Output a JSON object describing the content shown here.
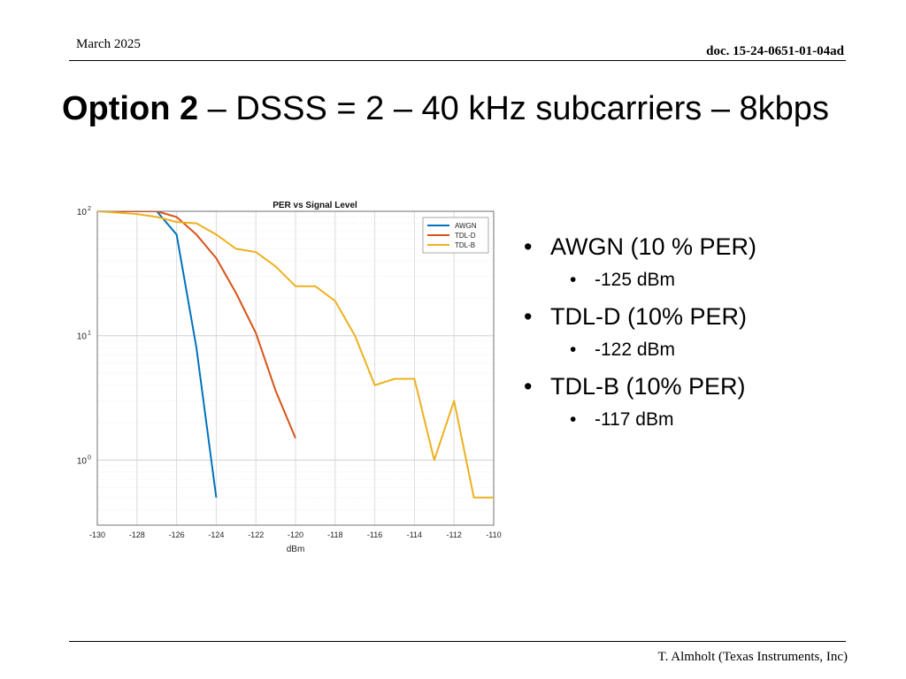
{
  "header": {
    "date": "March 2025",
    "doc_id": "doc. 15-24-0651-01-04ad"
  },
  "title": {
    "bold": "Option 2",
    "rest": " – DSSS = 2 – 40 kHz subcarriers – 8kbps"
  },
  "bullets": [
    {
      "text": "AWGN (10 % PER)",
      "sub": "-125 dBm"
    },
    {
      "text": "TDL-D (10% PER)",
      "sub": "-122 dBm"
    },
    {
      "text": "TDL-B (10% PER)",
      "sub": "-117 dBm"
    }
  ],
  "footer": {
    "author": "T. Almholt (Texas Instruments, Inc)"
  },
  "chart_data": {
    "type": "line",
    "title": "PER vs Signal Level",
    "xlabel": "dBm",
    "ylabel": "",
    "xlim": [
      -130,
      -110
    ],
    "ylim": [
      0.3,
      100
    ],
    "yscale": "log",
    "x_ticks": [
      -130,
      -128,
      -126,
      -124,
      -122,
      -120,
      -118,
      -116,
      -114,
      -112,
      -110
    ],
    "y_ticks": [
      {
        "value": 1,
        "label": "10",
        "exp": "0"
      },
      {
        "value": 10,
        "label": "10",
        "exp": "1"
      },
      {
        "value": 100,
        "label": "10",
        "exp": "2"
      }
    ],
    "grid": true,
    "legend": "top-right",
    "series": [
      {
        "name": "AWGN",
        "color": "#0072BD",
        "x": [
          -130,
          -127,
          -126,
          -125,
          -124
        ],
        "y": [
          100,
          100,
          65,
          8,
          0.5
        ]
      },
      {
        "name": "TDL-D",
        "color": "#D95319",
        "x": [
          -130,
          -127,
          -126,
          -125,
          -124,
          -123,
          -122,
          -121,
          -120
        ],
        "y": [
          100,
          100,
          90,
          65,
          42,
          22,
          10.5,
          3.6,
          1.5
        ]
      },
      {
        "name": "TDL-B",
        "color": "#EDB120",
        "x": [
          -130,
          -128,
          -127,
          -126,
          -125,
          -124,
          -123,
          -122,
          -121,
          -120,
          -119,
          -118,
          -117,
          -116,
          -115,
          -114,
          -113,
          -112,
          -111,
          -110
        ],
        "y": [
          100,
          95,
          90,
          82,
          80,
          65,
          50,
          47,
          36,
          25,
          25,
          19,
          10,
          4,
          4.5,
          4.5,
          1,
          3,
          0.5,
          0.5
        ]
      }
    ]
  }
}
